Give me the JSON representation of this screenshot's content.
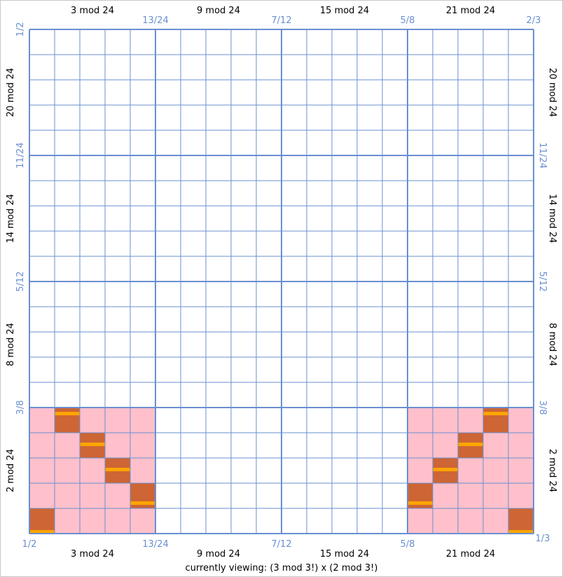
{
  "caption": "currently viewing: (3 mod 3!) x (2 mod 3!)",
  "grid": {
    "rows": 20,
    "cols": 20,
    "block": 5
  },
  "colors": {
    "line": "#6a8fd0",
    "region": "#ffc0cb",
    "marked": "#cd6534",
    "bar": "#ffa500",
    "tick": "#6a8fd0"
  },
  "top_labels": [
    "3 mod 24",
    "9 mod 24",
    "15 mod 24",
    "21 mod 24"
  ],
  "bottom_labels": [
    "3 mod 24",
    "9 mod 24",
    "15 mod 24",
    "21 mod 24"
  ],
  "left_labels": [
    "20 mod 24",
    "14 mod 24",
    "8 mod 24",
    "2 mod 24"
  ],
  "right_labels": [
    "20 mod 24",
    "14 mod 24",
    "8 mod 24",
    "2 mod 24"
  ],
  "top_ticks": [
    "13/24",
    "7/12",
    "5/8",
    "2/3"
  ],
  "bottom_ticks": [
    "1/2",
    "13/24",
    "7/12",
    "5/8",
    "1/3"
  ],
  "left_ticks": [
    "1/2",
    "11/24",
    "5/12",
    "3/8"
  ],
  "right_ticks": [
    "11/24",
    "5/12",
    "3/8"
  ],
  "pink_regions": [
    {
      "col_start": 0,
      "col_end": 4,
      "row_start": 15,
      "row_end": 19
    },
    {
      "col_start": 15,
      "col_end": 19,
      "row_start": 15,
      "row_end": 19
    }
  ],
  "marked_cells": [
    {
      "col": 1,
      "row": 15,
      "bar": "upper"
    },
    {
      "col": 2,
      "row": 16,
      "bar": "mid"
    },
    {
      "col": 3,
      "row": 17,
      "bar": "mid"
    },
    {
      "col": 4,
      "row": 18,
      "bar": "lower"
    },
    {
      "col": 0,
      "row": 19,
      "bar": "bottom"
    },
    {
      "col": 18,
      "row": 15,
      "bar": "upper"
    },
    {
      "col": 17,
      "row": 16,
      "bar": "mid"
    },
    {
      "col": 16,
      "row": 17,
      "bar": "mid"
    },
    {
      "col": 15,
      "row": 18,
      "bar": "lower"
    },
    {
      "col": 19,
      "row": 19,
      "bar": "bottom"
    }
  ]
}
